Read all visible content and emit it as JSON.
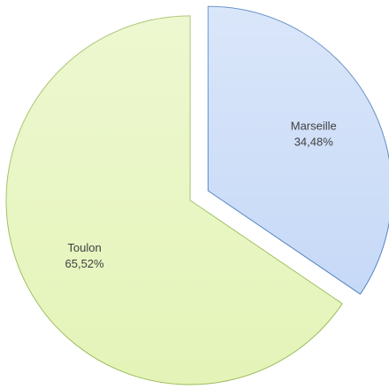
{
  "chart_data": {
    "type": "pie",
    "categories": [
      "Marseille",
      "Toulon"
    ],
    "values": [
      34.48,
      65.52
    ],
    "value_labels": [
      "34,48%",
      "65,52%"
    ],
    "colors": [
      "#c6d9f7",
      "#e4f4b8"
    ],
    "edge_colors": [
      "#4f81bd",
      "#9bbb59"
    ]
  }
}
